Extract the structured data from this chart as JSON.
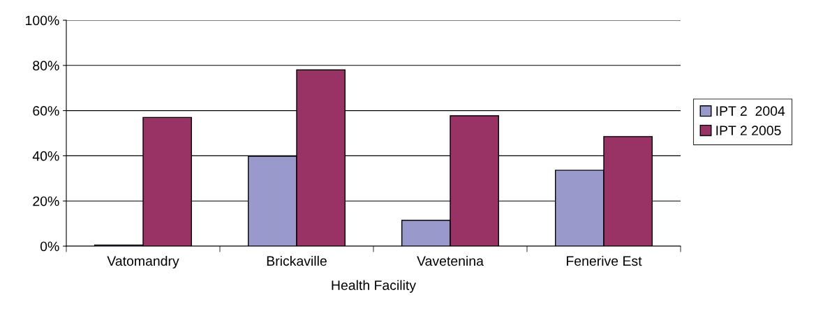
{
  "chart_data": {
    "type": "bar",
    "xlabel": "Health Facility",
    "categories": [
      "Vatomandry",
      "Brickaville",
      "Vavetenina",
      "Fenerive Est"
    ],
    "series": [
      {
        "name": "IPT 2  2004",
        "color": "#9999cc",
        "values": [
          0.5,
          39.8,
          11.4,
          33.6
        ]
      },
      {
        "name": "IPT 2 2005",
        "color": "#993366",
        "values": [
          57,
          78,
          57.7,
          48.5
        ]
      }
    ],
    "ylim": [
      0,
      100
    ],
    "yticks": [
      {
        "value": 0,
        "label": "0%"
      },
      {
        "value": 20,
        "label": "20%"
      },
      {
        "value": 40,
        "label": "40%"
      },
      {
        "value": 60,
        "label": "60%"
      },
      {
        "value": 80,
        "label": "80%"
      },
      {
        "value": 100,
        "label": "100%"
      }
    ],
    "grid": "y",
    "legend": "right"
  }
}
